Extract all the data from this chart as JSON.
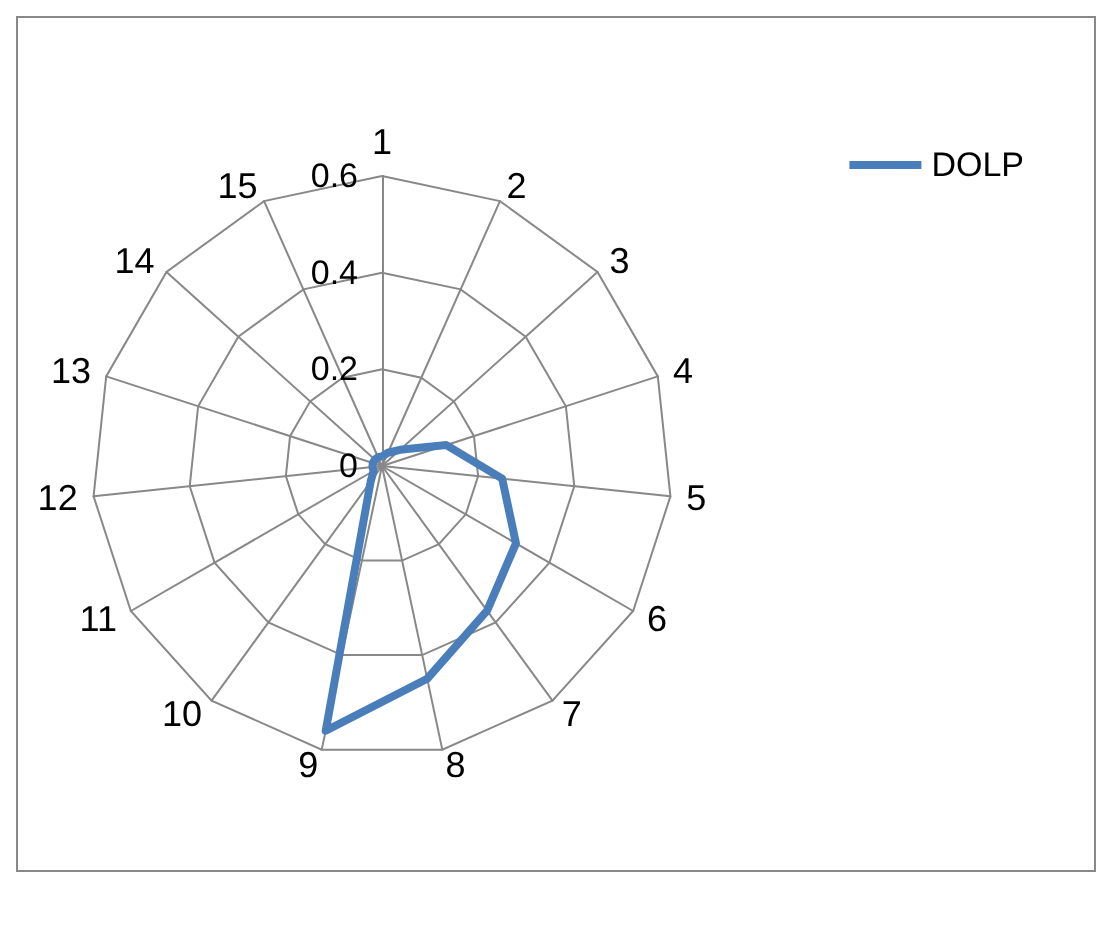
{
  "chart_data": {
    "type": "radar",
    "categories": [
      "1",
      "2",
      "3",
      "4",
      "5",
      "6",
      "7",
      "8",
      "9",
      "10",
      "11",
      "12",
      "13",
      "14",
      "15"
    ],
    "series": [
      {
        "name": "DOLP",
        "color": "#4a7ebb",
        "values": [
          0.02,
          0.03,
          0.05,
          0.14,
          0.25,
          0.32,
          0.37,
          0.45,
          0.56,
          0.04,
          0.02,
          0.02,
          0.02,
          0.02,
          0.02
        ]
      }
    ],
    "ylim": [
      0,
      0.6
    ],
    "yticks": [
      0,
      0.2,
      0.4,
      0.6
    ],
    "legend": "top right",
    "marker": "none",
    "grid": true
  }
}
